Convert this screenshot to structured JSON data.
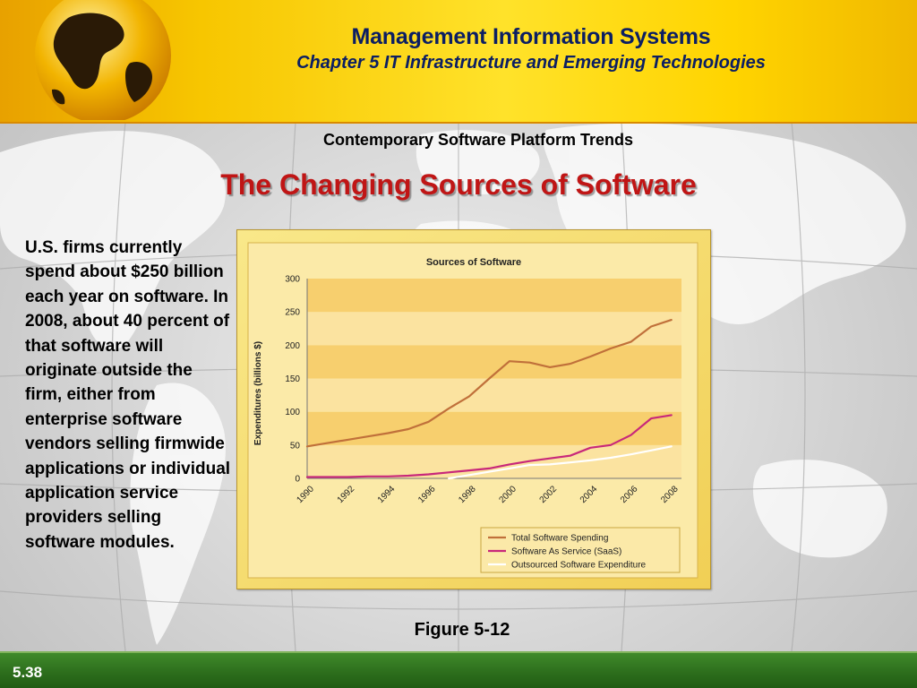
{
  "header": {
    "app_title": "Management Information Systems",
    "chapter_title": "Chapter 5 IT Infrastructure and Emerging Technologies"
  },
  "section_heading": "Contemporary Software Platform Trends",
  "slide_title": "The Changing Sources of Software",
  "body_text": "U.S. firms currently spend about $250 billion each year on software. In 2008, about 40 percent of that software will originate outside the firm, either from enterprise software vendors selling firmwide applications or individual application service providers selling software modules.",
  "figure_caption": "Figure 5-12",
  "footer": {
    "slide_number": "5.38"
  },
  "colors": {
    "header_gold": "#ffd400",
    "title_red": "#c01515",
    "footer_green": "#2c6d1c",
    "chart_bg": "#f6dd6c",
    "series_total": "#c0703a",
    "series_saas": "#c8287a",
    "series_outsourced": "#ffffff"
  },
  "chart_data": {
    "type": "line",
    "title": "Sources of Software",
    "xlabel": "",
    "ylabel": "Expenditures (billions $)",
    "ylim": [
      0,
      300
    ],
    "yticks": [
      0,
      50,
      100,
      150,
      200,
      250,
      300
    ],
    "xlim": [
      1990,
      2008.5
    ],
    "xticks": [
      "1990",
      "1992",
      "1994",
      "1996",
      "1998",
      "2000",
      "2002",
      "2004",
      "2006",
      "2008"
    ],
    "grid": "horizontal bands",
    "legend": "bottom-right",
    "x": [
      1990,
      1991,
      1992,
      1993,
      1994,
      1995,
      1996,
      1997,
      1998,
      1999,
      2000,
      2001,
      2002,
      2003,
      2004,
      2005,
      2006,
      2007,
      2008
    ],
    "series": [
      {
        "name": "Total Software Spending",
        "color": "#c0703a",
        "values": [
          48,
          53,
          58,
          63,
          68,
          74,
          85,
          105,
          123,
          150,
          176,
          174,
          167,
          172,
          183,
          195,
          205,
          228,
          238
        ]
      },
      {
        "name": "Software As Service (SaaS)",
        "color": "#c8287a",
        "values": [
          2,
          2,
          2,
          3,
          3,
          4,
          6,
          9,
          12,
          15,
          21,
          26,
          30,
          34,
          46,
          50,
          65,
          90,
          95
        ]
      },
      {
        "name": "Outsourced Software Expenditure",
        "color": "#ffffff",
        "values": [
          null,
          null,
          null,
          null,
          null,
          null,
          null,
          0,
          5,
          10,
          15,
          20,
          21,
          24,
          27,
          31,
          36,
          42,
          48
        ]
      }
    ]
  }
}
